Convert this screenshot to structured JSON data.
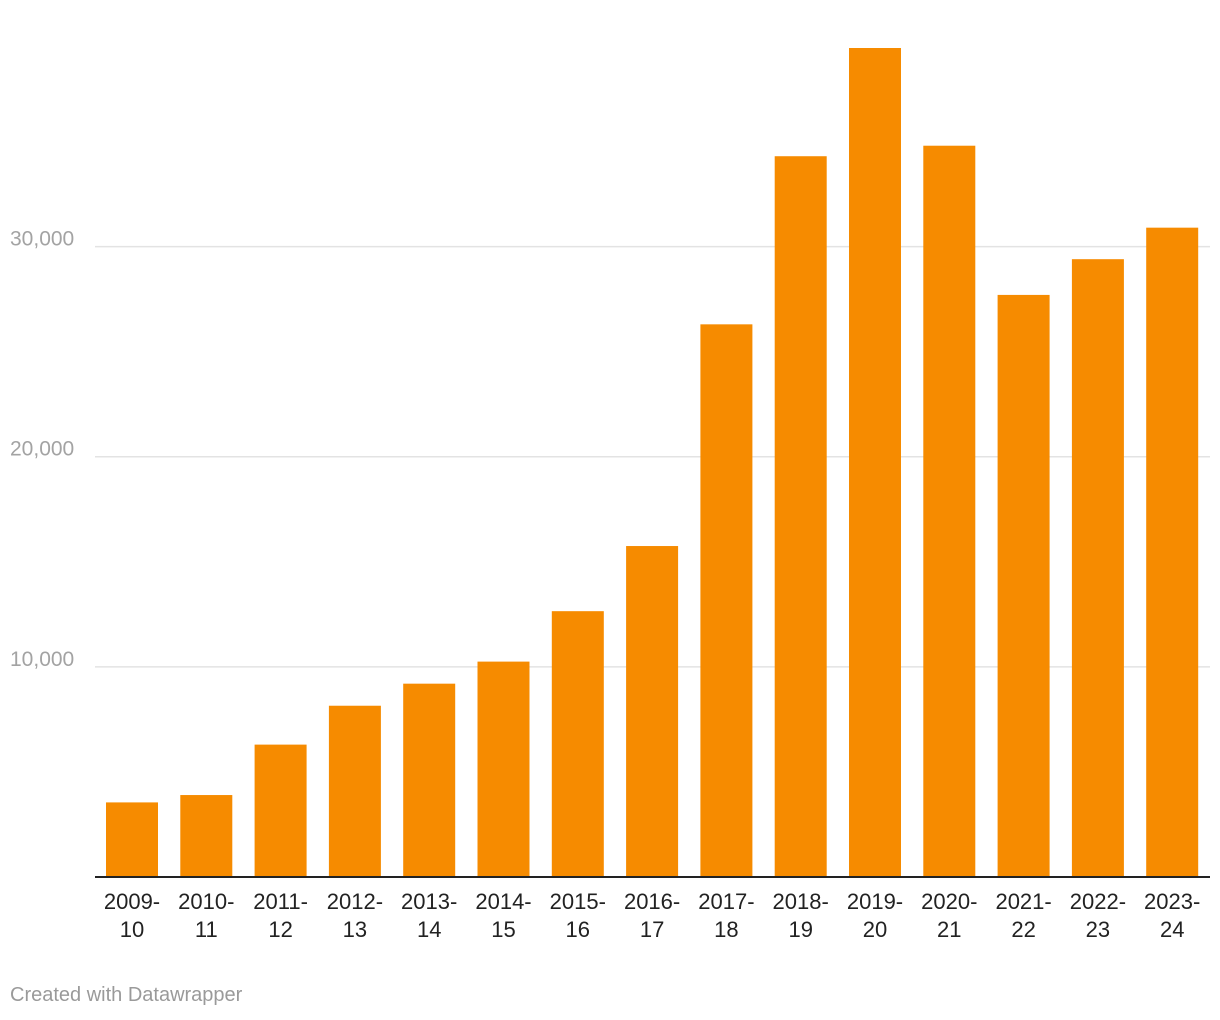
{
  "chart_data": {
    "type": "bar",
    "title": "",
    "xlabel": "",
    "ylabel": "",
    "categories": [
      [
        "2009-",
        "10"
      ],
      [
        "2010-",
        "11"
      ],
      [
        "2011-",
        "12"
      ],
      [
        "2012-",
        "13"
      ],
      [
        "2013-",
        "14"
      ],
      [
        "2014-",
        "15"
      ],
      [
        "2015-",
        "16"
      ],
      [
        "2016-",
        "17"
      ],
      [
        "2017-",
        "18"
      ],
      [
        "2018-",
        "19"
      ],
      [
        "2019-",
        "20"
      ],
      [
        "2020-",
        "21"
      ],
      [
        "2021-",
        "22"
      ],
      [
        "2022-",
        "23"
      ],
      [
        "2023-",
        "24"
      ]
    ],
    "values": [
      3550,
      3900,
      6300,
      8150,
      9200,
      10250,
      12650,
      15750,
      26300,
      34300,
      39450,
      34800,
      27700,
      29400,
      30900
    ],
    "ylim": [
      0,
      39450
    ],
    "yticks": [
      10000,
      20000,
      30000
    ],
    "ytick_labels": [
      "10,000",
      "20,000",
      "30,000"
    ],
    "grid": true,
    "bar_color": "#f68b00"
  },
  "footer": {
    "credit": "Created with Datawrapper"
  }
}
